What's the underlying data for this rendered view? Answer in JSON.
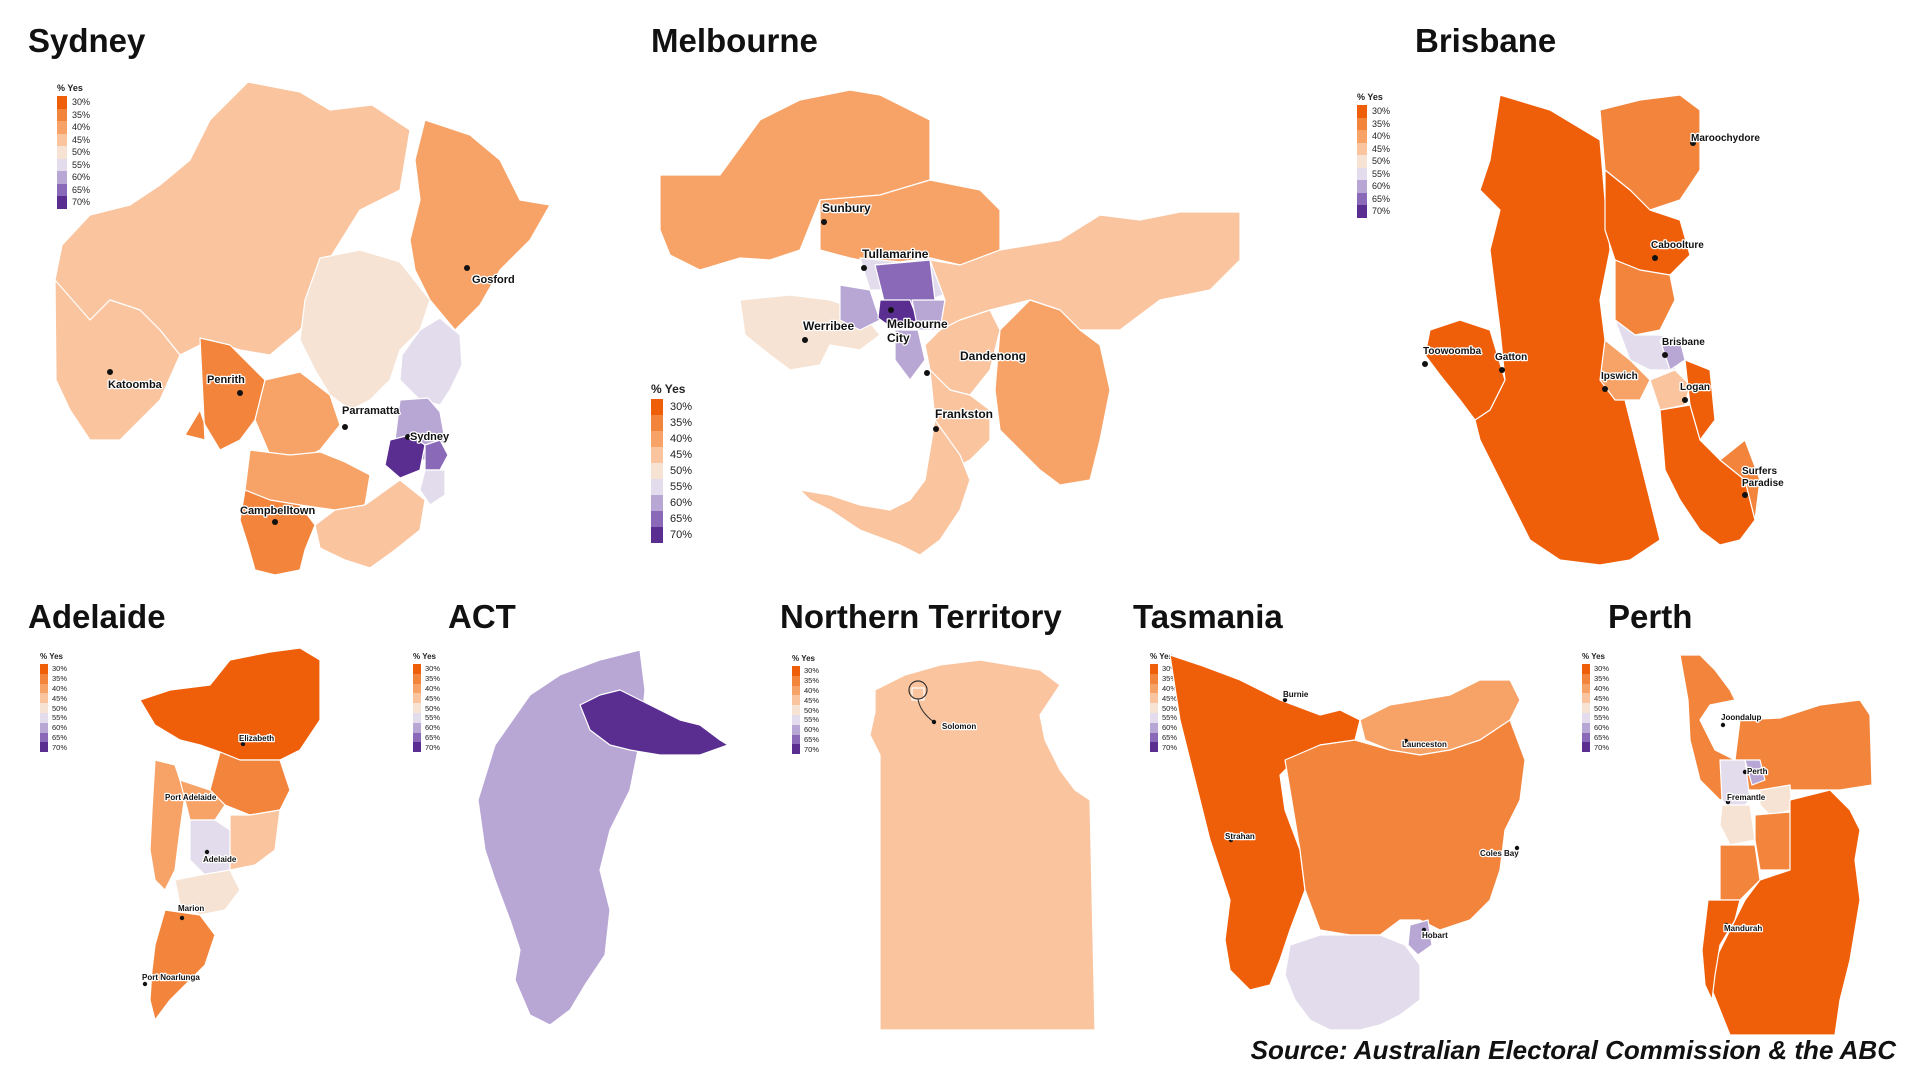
{
  "scale": {
    "title": "% Yes",
    "colors": [
      "#ef5f0a",
      "#f3843c",
      "#f7a266",
      "#fac49e",
      "#f7e3d3",
      "#e2dced",
      "#b8a6d4",
      "#8a6ab8",
      "#5a2d91"
    ],
    "labels": [
      "30%",
      "35%",
      "40%",
      "45%",
      "50%",
      "55%",
      "60%",
      "65%",
      "70%"
    ]
  },
  "panels": [
    {
      "id": "sydney",
      "title": "Sydney",
      "cities": [
        "Gosford",
        "Katoomba",
        "Penrith",
        "Parramatta",
        "Sydney",
        "Campbelltown"
      ]
    },
    {
      "id": "melbourne",
      "title": "Melbourne",
      "cities": [
        "Sunbury",
        "Tullamarine",
        "Werribee",
        "Melbourne City",
        "Dandenong",
        "Frankston"
      ]
    },
    {
      "id": "brisbane",
      "title": "Brisbane",
      "cities": [
        "Maroochydore",
        "Caboolture",
        "Toowoomba",
        "Gatton",
        "Brisbane",
        "Ipswich",
        "Logan",
        "Surfers Paradise"
      ]
    },
    {
      "id": "adelaide",
      "title": "Adelaide",
      "cities": [
        "Elizabeth",
        "Port Adelaide",
        "Adelaide",
        "Marion",
        "Port Noarlunga"
      ]
    },
    {
      "id": "act",
      "title": "ACT",
      "cities": []
    },
    {
      "id": "nt",
      "title": "Northern Territory",
      "cities": [
        "Solomon"
      ]
    },
    {
      "id": "tasmania",
      "title": "Tasmania",
      "cities": [
        "Burnie",
        "Launceston",
        "Strahan",
        "Coles Bay",
        "Hobart"
      ]
    },
    {
      "id": "perth",
      "title": "Perth",
      "cities": [
        "Joondalup",
        "Perth",
        "Fremantle",
        "Mandurah"
      ]
    }
  ],
  "source": "Source: Australian Electoral Commission & the ABC"
}
